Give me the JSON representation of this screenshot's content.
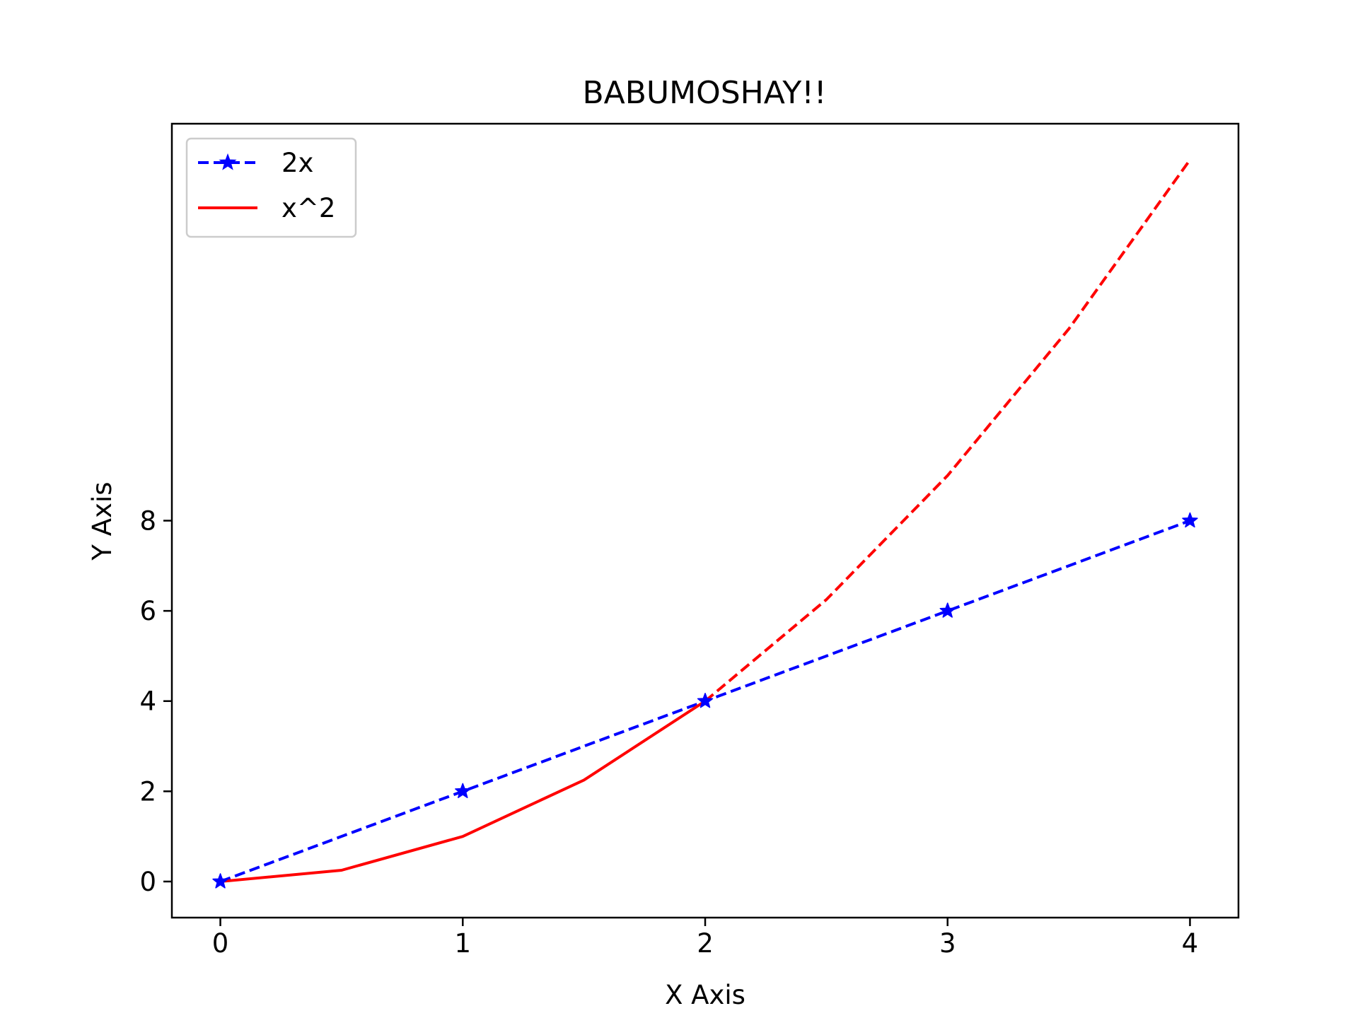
{
  "chart_data": {
    "type": "line",
    "title": "BABUMOSHAY!!",
    "xlabel": "X Axis",
    "ylabel": "Y Axis",
    "xlim": [
      -0.2,
      4.2
    ],
    "ylim": [
      -0.8,
      16.8
    ],
    "xticks": [
      0,
      1,
      2,
      3,
      4
    ],
    "yticks": [
      0,
      2,
      4,
      6,
      8
    ],
    "grid": false,
    "legend": {
      "placement": "top-left"
    },
    "series": [
      {
        "name": "2x",
        "color": "#0000ff",
        "line_style": "dashed",
        "marker": "star",
        "x": [
          0,
          1,
          2,
          3,
          4
        ],
        "y": [
          0,
          2,
          4,
          6,
          8
        ]
      },
      {
        "name": "x^2",
        "color": "#ff0000",
        "line_style": "solid",
        "marker": "none",
        "x": [
          0,
          0.5,
          1,
          1.5,
          2
        ],
        "y": [
          0,
          0.25,
          1,
          2.25,
          4
        ]
      },
      {
        "color": "#ff0000",
        "line_style": "dashed",
        "marker": "none",
        "x": [
          2,
          2.5,
          3,
          3.5,
          4
        ],
        "y": [
          4,
          6.25,
          9,
          12.25,
          16
        ]
      }
    ]
  }
}
